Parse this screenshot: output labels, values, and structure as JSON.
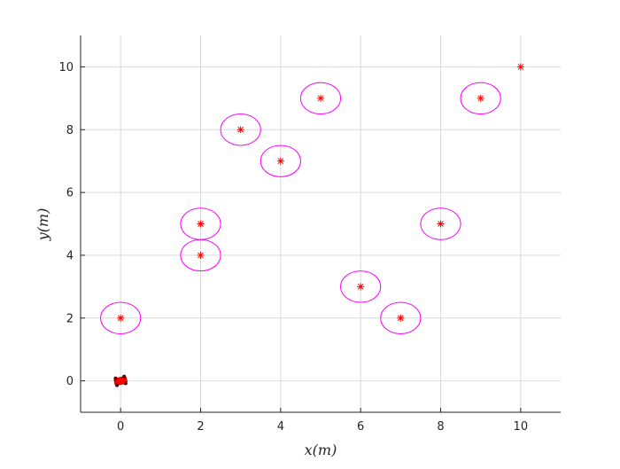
{
  "chart_data": {
    "type": "scatter",
    "title": "",
    "xlabel": "x(m)",
    "ylabel": "y(m)",
    "xlim": [
      -1,
      11
    ],
    "ylim": [
      -1,
      11
    ],
    "xticks": [
      0,
      2,
      4,
      6,
      8,
      10
    ],
    "yticks": [
      0,
      2,
      4,
      6,
      8,
      10
    ],
    "grid": true,
    "colors": {
      "points": "#ff0000",
      "circles": "#ff00ff",
      "grid": "#d9d9d9",
      "axes": "#262626"
    },
    "points": [
      {
        "x": 0,
        "y": 2,
        "circled": true
      },
      {
        "x": 2,
        "y": 4,
        "circled": true
      },
      {
        "x": 2,
        "y": 5,
        "circled": true
      },
      {
        "x": 3,
        "y": 8,
        "circled": true
      },
      {
        "x": 4,
        "y": 7,
        "circled": true
      },
      {
        "x": 5,
        "y": 9,
        "circled": true
      },
      {
        "x": 6,
        "y": 3,
        "circled": true
      },
      {
        "x": 7,
        "y": 2,
        "circled": true
      },
      {
        "x": 8,
        "y": 5,
        "circled": true
      },
      {
        "x": 9,
        "y": 9,
        "circled": true
      },
      {
        "x": 10,
        "y": 10,
        "circled": false
      }
    ],
    "circle_radius": 0.5,
    "vehicle": {
      "x": 0,
      "y": 0,
      "color": "#ff0000"
    }
  }
}
